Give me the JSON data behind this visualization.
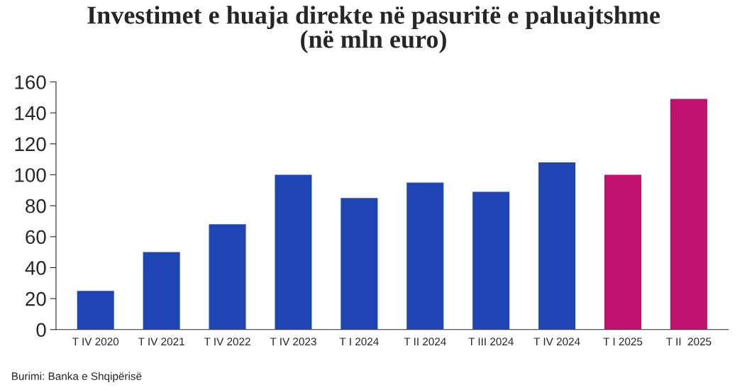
{
  "chart_data": {
    "type": "bar",
    "title": "Investimet e huaja direkte në pasuritë e paluajtshme\n(në mln euro)",
    "categories": [
      "T IV 2020",
      "T IV 2021",
      "T IV 2022",
      "T IV 2023",
      "T I 2024",
      "T II 2024",
      "T III 2024",
      "T IV 2024",
      "T I 2025",
      "T II  2025"
    ],
    "values": [
      25,
      50,
      68,
      100,
      85,
      95,
      89,
      108,
      100,
      149
    ],
    "colors": [
      "#1f45b5",
      "#1f45b5",
      "#1f45b5",
      "#1f45b5",
      "#1f45b5",
      "#1f45b5",
      "#1f45b5",
      "#1f45b5",
      "#c0116e",
      "#c0116e"
    ],
    "ylim": [
      0,
      160
    ],
    "yticks": [
      0,
      20,
      40,
      60,
      80,
      100,
      120,
      140,
      160
    ],
    "grid": false,
    "annotations": [
      "Burimi: Banka e Shqipërisë"
    ]
  }
}
